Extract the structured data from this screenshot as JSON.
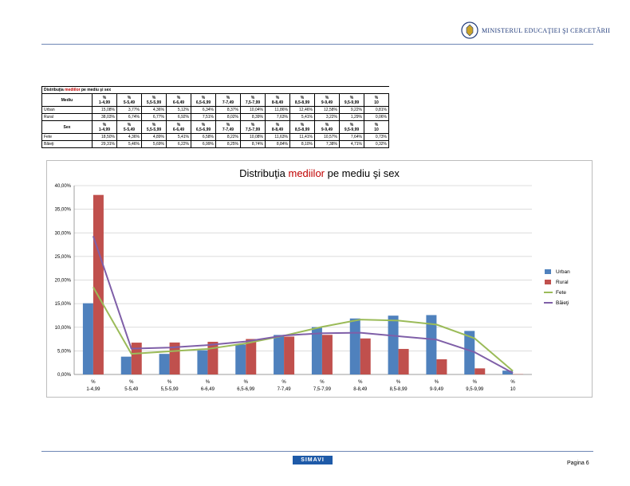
{
  "header": {
    "ministry": "MINISTERUL EDUCAŢIEI ŞI CERCETĂRII"
  },
  "table": {
    "title_part1": "Distribuţia ",
    "title_highlight": "mediilor",
    "title_part2": " pe mediu şi sex",
    "columns": [
      [
        "%",
        "1-4,99"
      ],
      [
        "%",
        "5-5,49"
      ],
      [
        "%",
        "5,5-5,99"
      ],
      [
        "%",
        "6-6,49"
      ],
      [
        "%",
        "6,5-6,99"
      ],
      [
        "%",
        "7-7,49"
      ],
      [
        "%",
        "7,5-7,99"
      ],
      [
        "%",
        "8-8,49"
      ],
      [
        "%",
        "8,5-8,99"
      ],
      [
        "%",
        "9-9,49"
      ],
      [
        "%",
        "9,5-9,99"
      ],
      [
        "%",
        "10"
      ]
    ],
    "group1_label": "Mediu",
    "group1_rows": [
      {
        "label": "Urban",
        "cells": [
          "15,08%",
          "3,77%",
          "4,36%",
          "5,12%",
          "6,34%",
          "8,37%",
          "10,04%",
          "11,86%",
          "12,46%",
          "12,58%",
          "9,22%",
          "0,81%"
        ]
      },
      {
        "label": "Rural",
        "cells": [
          "38,03%",
          "6,74%",
          "6,77%",
          "6,92%",
          "7,51%",
          "8,02%",
          "8,39%",
          "7,63%",
          "5,41%",
          "3,22%",
          "1,29%",
          "0,06%"
        ]
      }
    ],
    "group2_label": "Sex",
    "group2_rows": [
      {
        "label": "Fete",
        "cells": [
          "18,50%",
          "4,36%",
          "4,89%",
          "5,41%",
          "6,58%",
          "8,22%",
          "10,08%",
          "11,63%",
          "11,41%",
          "10,57%",
          "7,64%",
          "0,73%"
        ]
      },
      {
        "label": "Băieţi",
        "cells": [
          "29,31%",
          "5,46%",
          "5,69%",
          "6,22%",
          "6,99%",
          "8,25%",
          "8,74%",
          "8,84%",
          "8,10%",
          "7,38%",
          "4,71%",
          "0,32%"
        ]
      }
    ]
  },
  "chart_data": {
    "type": "bar",
    "title_part1": "Distribuţia ",
    "title_highlight": "mediilor",
    "title_part2": " pe mediu şi sex",
    "categories": [
      "1-4,99",
      "5-5,49",
      "5,5-5,99",
      "6-6,49",
      "6,5-6,99",
      "7-7,49",
      "7,5-7,99",
      "8-8,49",
      "8,5-8,99",
      "9-9,49",
      "9,5-9,99",
      "10"
    ],
    "category_prefix": "%",
    "series": [
      {
        "name": "Urban",
        "type": "bar",
        "color": "#4f81bd",
        "values": [
          15.08,
          3.77,
          4.36,
          5.12,
          6.34,
          8.37,
          10.04,
          11.86,
          12.46,
          12.58,
          9.22,
          0.81
        ]
      },
      {
        "name": "Rural",
        "type": "bar",
        "color": "#c0504d",
        "values": [
          38.03,
          6.74,
          6.77,
          6.92,
          7.51,
          8.02,
          8.39,
          7.63,
          5.41,
          3.22,
          1.29,
          0.06
        ]
      },
      {
        "name": "Fete",
        "type": "line",
        "color": "#9bbb59",
        "values": [
          18.5,
          4.36,
          4.89,
          5.41,
          6.58,
          8.22,
          10.08,
          11.63,
          11.41,
          10.57,
          7.64,
          0.73
        ]
      },
      {
        "name": "Băieţi",
        "type": "line",
        "color": "#7f5fa8",
        "values": [
          29.31,
          5.46,
          5.69,
          6.22,
          6.99,
          8.25,
          8.74,
          8.84,
          8.1,
          7.38,
          4.71,
          0.32
        ]
      }
    ],
    "ylim": [
      0,
      40
    ],
    "yticks": [
      "0,00%",
      "5,00%",
      "10,00%",
      "15,00%",
      "20,00%",
      "25,00%",
      "30,00%",
      "35,00%",
      "40,00%"
    ],
    "grid": true,
    "legend_position": "right"
  },
  "footer": {
    "logo_text": "SIMAVI",
    "page": "Pagina 6"
  }
}
